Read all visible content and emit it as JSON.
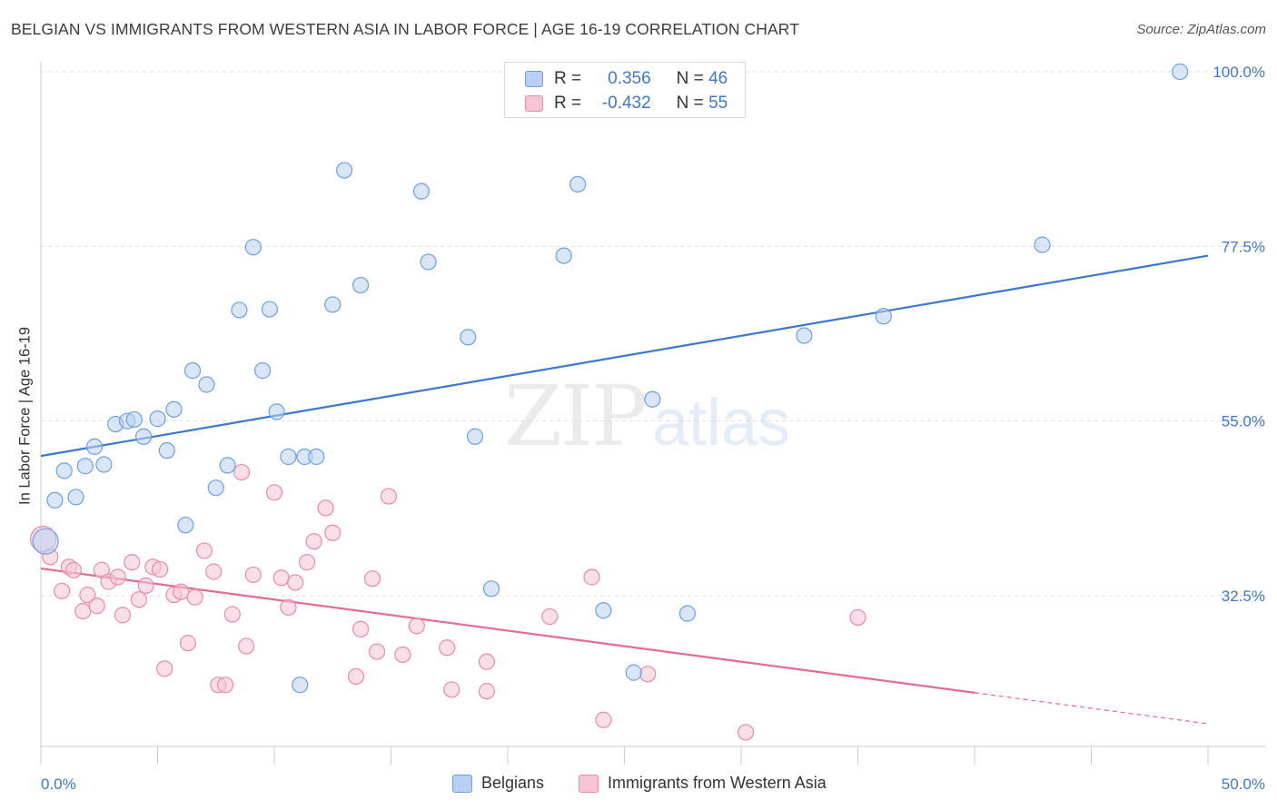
{
  "header": {
    "title": "BELGIAN VS IMMIGRANTS FROM WESTERN ASIA IN LABOR FORCE | AGE 16-19 CORRELATION CHART",
    "source": "Source: ZipAtlas.com"
  },
  "watermark": {
    "zip": "ZIP",
    "atlas": "atlas"
  },
  "legend": {
    "rows": [
      {
        "r_label": "R =",
        "r_value": "0.356",
        "n_label": "N =",
        "n_value": "46"
      },
      {
        "r_label": "R =",
        "r_value": "-0.432",
        "n_label": "N =",
        "n_value": "55"
      }
    ]
  },
  "bottom_legend": [
    "Belgians",
    "Immigrants from Western Asia"
  ],
  "colors": {
    "blue_fill": "#b8d1f3",
    "blue_stroke": "#6d9fe0",
    "blue_line": "#3a78d0",
    "pink_fill": "#f6c4d3",
    "pink_stroke": "#e98ba9",
    "pink_line": "#e56a94",
    "tick_label": "#3f78c8",
    "grid": "#dddddd"
  },
  "chart_data": {
    "type": "scatter",
    "title": "BELGIAN VS IMMIGRANTS FROM WESTERN ASIA IN LABOR FORCE | AGE 16-19 CORRELATION CHART",
    "xlabel": "",
    "ylabel": "In Labor Force | Age 16-19",
    "xlim": [
      0,
      50
    ],
    "ylim": [
      12,
      102
    ],
    "x_tick_labels": [
      "0.0%",
      "50.0%"
    ],
    "y_ticks": [
      32.5,
      55.0,
      77.5,
      100.0
    ],
    "y_tick_labels": [
      "32.5%",
      "55.0%",
      "77.5%",
      "100.0%"
    ],
    "grid": true,
    "legend_position": "top-center",
    "series": [
      {
        "name": "Belgians",
        "r": 0.356,
        "n": 46,
        "trend": {
          "x": [
            0,
            50
          ],
          "y": [
            50.5,
            76.3
          ]
        },
        "points": [
          [
            0.2,
            39.5
          ],
          [
            0.6,
            44.8
          ],
          [
            1.0,
            48.6
          ],
          [
            1.5,
            45.2
          ],
          [
            1.9,
            49.2
          ],
          [
            2.3,
            51.7
          ],
          [
            2.7,
            49.4
          ],
          [
            3.2,
            54.6
          ],
          [
            3.7,
            55.0
          ],
          [
            4.0,
            55.2
          ],
          [
            4.4,
            53.0
          ],
          [
            5.0,
            55.3
          ],
          [
            5.4,
            51.2
          ],
          [
            5.7,
            56.5
          ],
          [
            6.2,
            41.6
          ],
          [
            6.5,
            61.5
          ],
          [
            7.1,
            59.7
          ],
          [
            7.5,
            46.4
          ],
          [
            8.0,
            49.3
          ],
          [
            8.5,
            69.3
          ],
          [
            9.1,
            77.4
          ],
          [
            9.5,
            61.5
          ],
          [
            9.8,
            69.4
          ],
          [
            10.1,
            56.2
          ],
          [
            10.6,
            50.4
          ],
          [
            11.1,
            21.0
          ],
          [
            11.3,
            50.4
          ],
          [
            11.8,
            50.4
          ],
          [
            12.5,
            70.0
          ],
          [
            13.0,
            87.3
          ],
          [
            13.7,
            72.5
          ],
          [
            16.3,
            84.6
          ],
          [
            16.6,
            75.5
          ],
          [
            18.3,
            65.8
          ],
          [
            18.6,
            53.0
          ],
          [
            19.3,
            33.4
          ],
          [
            22.4,
            76.3
          ],
          [
            23.0,
            85.5
          ],
          [
            24.1,
            30.6
          ],
          [
            25.4,
            22.6
          ],
          [
            26.2,
            57.8
          ],
          [
            27.7,
            30.2
          ],
          [
            32.7,
            66.0
          ],
          [
            36.1,
            68.5
          ],
          [
            42.9,
            77.7
          ],
          [
            48.8,
            100.0
          ]
        ]
      },
      {
        "name": "Immigrants from Western Asia",
        "r": -0.432,
        "n": 55,
        "trend": {
          "x": [
            0,
            40
          ],
          "y": [
            36.0,
            20.0
          ]
        },
        "trend_dashed": {
          "x": [
            40,
            50
          ],
          "y": [
            20.0,
            16.0
          ]
        },
        "points": [
          [
            0.1,
            39.8
          ],
          [
            0.4,
            37.5
          ],
          [
            0.9,
            33.1
          ],
          [
            1.2,
            36.2
          ],
          [
            1.4,
            35.8
          ],
          [
            1.8,
            30.5
          ],
          [
            2.0,
            32.6
          ],
          [
            2.4,
            31.2
          ],
          [
            2.6,
            35.8
          ],
          [
            2.9,
            34.3
          ],
          [
            3.3,
            34.9
          ],
          [
            3.5,
            30.0
          ],
          [
            3.9,
            36.8
          ],
          [
            4.2,
            32.0
          ],
          [
            4.5,
            33.8
          ],
          [
            4.8,
            36.2
          ],
          [
            5.1,
            35.9
          ],
          [
            5.3,
            23.1
          ],
          [
            5.7,
            32.6
          ],
          [
            6.0,
            33.0
          ],
          [
            6.3,
            26.4
          ],
          [
            6.6,
            32.3
          ],
          [
            7.0,
            38.3
          ],
          [
            7.4,
            35.6
          ],
          [
            7.6,
            21.0
          ],
          [
            7.9,
            21.0
          ],
          [
            8.2,
            30.1
          ],
          [
            8.6,
            48.4
          ],
          [
            8.8,
            26.0
          ],
          [
            9.1,
            35.2
          ],
          [
            10.0,
            45.8
          ],
          [
            10.3,
            34.8
          ],
          [
            10.6,
            31.0
          ],
          [
            10.9,
            34.2
          ],
          [
            11.4,
            36.8
          ],
          [
            11.7,
            39.5
          ],
          [
            12.2,
            43.8
          ],
          [
            12.5,
            40.6
          ],
          [
            13.5,
            22.1
          ],
          [
            13.7,
            28.2
          ],
          [
            14.2,
            34.7
          ],
          [
            14.4,
            25.3
          ],
          [
            14.9,
            45.3
          ],
          [
            15.5,
            24.9
          ],
          [
            16.1,
            28.6
          ],
          [
            17.4,
            25.8
          ],
          [
            17.6,
            20.4
          ],
          [
            19.1,
            24.0
          ],
          [
            19.1,
            20.2
          ],
          [
            21.8,
            29.8
          ],
          [
            23.6,
            34.9
          ],
          [
            24.1,
            16.5
          ],
          [
            26.0,
            22.4
          ],
          [
            30.2,
            14.9
          ],
          [
            35.0,
            29.7
          ]
        ]
      }
    ]
  }
}
